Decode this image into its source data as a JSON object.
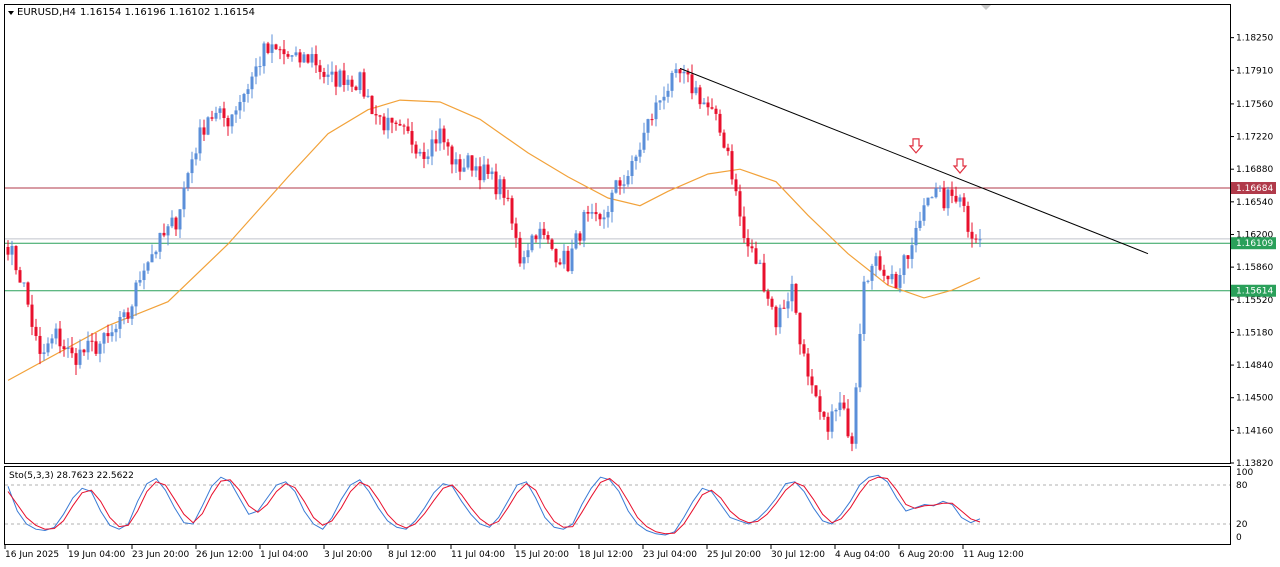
{
  "window": {
    "symbol_label": "EURUSD,H4",
    "ohlc_text": "1.16154 1.16196 1.16102 1.16154"
  },
  "colors": {
    "bull": "#5b8fd9",
    "bear": "#e8102d",
    "ma": "#f2a23a",
    "resistance": "#b03a4a",
    "support": "#2aa05a",
    "trendline": "#000000",
    "stoch_main": "#3a7bd5",
    "stoch_signal": "#e8102d",
    "arrow": "#e03040"
  },
  "chart_data": [
    {
      "type": "candlestick",
      "symbol": "EURUSD",
      "timeframe": "H4",
      "ylim": [
        1.1382,
        1.1859
      ],
      "y_ticks": [
        "1.18250",
        "1.17910",
        "1.17560",
        "1.17220",
        "1.16880",
        "1.16540",
        "1.16200",
        "1.15860",
        "1.15520",
        "1.15180",
        "1.14840",
        "1.14500",
        "1.14160",
        "1.13820"
      ],
      "x_ticks": [
        "16 Jun 2025",
        "19 Jun 04:00",
        "23 Jun 20:00",
        "26 Jun 12:00",
        "1 Jul 04:00",
        "3 Jul 20:00",
        "8 Jul 12:00",
        "11 Jul 04:00",
        "15 Jul 20:00",
        "18 Jul 12:00",
        "23 Jul 04:00",
        "25 Jul 20:00",
        "30 Jul 12:00",
        "4 Aug 04:00",
        "6 Aug 20:00",
        "11 Aug 12:00"
      ],
      "horizontal_levels": [
        {
          "value": 1.16684,
          "label": "1.16684",
          "role": "resistance"
        },
        {
          "value": 1.16109,
          "label": "1.16109",
          "role": "support"
        },
        {
          "value": 1.15614,
          "label": "1.15614",
          "role": "support"
        }
      ],
      "current_price": 1.16154,
      "trendline": {
        "from": {
          "bar": 168,
          "price": 1.1793
        },
        "to": {
          "bar": 285,
          "price": 1.16
        }
      },
      "arrows": [
        {
          "bar": 227,
          "price": 1.1705
        },
        {
          "bar": 238,
          "price": 1.1684
        }
      ],
      "anchor_closes": [
        [
          0,
          1.161
        ],
        [
          4,
          1.1565
        ],
        [
          8,
          1.149
        ],
        [
          12,
          1.1515
        ],
        [
          16,
          1.1492
        ],
        [
          20,
          1.15
        ],
        [
          25,
          1.151
        ],
        [
          30,
          1.1535
        ],
        [
          34,
          1.159
        ],
        [
          38,
          1.1612
        ],
        [
          42,
          1.1635
        ],
        [
          46,
          1.17
        ],
        [
          50,
          1.1745
        ],
        [
          55,
          1.174
        ],
        [
          60,
          1.1775
        ],
        [
          64,
          1.181
        ],
        [
          68,
          1.181
        ],
        [
          72,
          1.18
        ],
        [
          76,
          1.1806
        ],
        [
          80,
          1.178
        ],
        [
          84,
          1.1785
        ],
        [
          88,
          1.1778
        ],
        [
          92,
          1.1745
        ],
        [
          96,
          1.1728
        ],
        [
          100,
          1.1722
        ],
        [
          104,
          1.1708
        ],
        [
          108,
          1.1725
        ],
        [
          112,
          1.169
        ],
        [
          116,
          1.1695
        ],
        [
          120,
          1.168
        ],
        [
          124,
          1.1665
        ],
        [
          128,
          1.1595
        ],
        [
          132,
          1.1625
        ],
        [
          136,
          1.1605
        ],
        [
          140,
          1.159
        ],
        [
          144,
          1.1635
        ],
        [
          148,
          1.163
        ],
        [
          152,
          1.1668
        ],
        [
          156,
          1.1688
        ],
        [
          160,
          1.1735
        ],
        [
          164,
          1.177
        ],
        [
          168,
          1.1785
        ],
        [
          172,
          1.177
        ],
        [
          176,
          1.1745
        ],
        [
          180,
          1.1708
        ],
        [
          184,
          1.1615
        ],
        [
          188,
          1.1585
        ],
        [
          192,
          1.153
        ],
        [
          196,
          1.1565
        ],
        [
          200,
          1.1465
        ],
        [
          204,
          1.142
        ],
        [
          208,
          1.144
        ],
        [
          211,
          1.141
        ],
        [
          212,
          1.147
        ],
        [
          214,
          1.158
        ],
        [
          218,
          1.159
        ],
        [
          222,
          1.157
        ],
        [
          226,
          1.1605
        ],
        [
          230,
          1.1668
        ],
        [
          234,
          1.1655
        ],
        [
          238,
          1.1665
        ],
        [
          240,
          1.163
        ],
        [
          243,
          1.1615
        ]
      ],
      "ma_path": [
        [
          0,
          1.1468
        ],
        [
          25,
          1.1525
        ],
        [
          40,
          1.155
        ],
        [
          55,
          1.161
        ],
        [
          70,
          1.168
        ],
        [
          80,
          1.1725
        ],
        [
          90,
          1.175
        ],
        [
          98,
          1.176
        ],
        [
          108,
          1.1758
        ],
        [
          118,
          1.174
        ],
        [
          130,
          1.1705
        ],
        [
          140,
          1.168
        ],
        [
          150,
          1.1658
        ],
        [
          158,
          1.165
        ],
        [
          165,
          1.1665
        ],
        [
          175,
          1.1683
        ],
        [
          183,
          1.1688
        ],
        [
          192,
          1.1675
        ],
        [
          200,
          1.164
        ],
        [
          210,
          1.16
        ],
        [
          220,
          1.1567
        ],
        [
          229,
          1.1554
        ],
        [
          236,
          1.1562
        ],
        [
          243,
          1.1575
        ]
      ]
    },
    {
      "type": "line",
      "indicator": "Stochastic",
      "label": "Sto(5,3,3) 28.7623 22.5622",
      "ylim": [
        0,
        100
      ],
      "y_ticks": [
        "100",
        "80",
        "20",
        "0"
      ],
      "levels": [
        80,
        20
      ],
      "series": [
        {
          "role": "main",
          "values": [
            78,
            40,
            20,
            12,
            10,
            15,
            35,
            60,
            75,
            70,
            40,
            18,
            12,
            20,
            55,
            82,
            90,
            72,
            45,
            22,
            20,
            48,
            78,
            92,
            85,
            60,
            35,
            40,
            60,
            80,
            85,
            70,
            40,
            20,
            12,
            30,
            58,
            80,
            88,
            70,
            45,
            25,
            15,
            12,
            25,
            45,
            68,
            82,
            78,
            55,
            35,
            20,
            15,
            30,
            55,
            80,
            85,
            60,
            30,
            15,
            12,
            20,
            50,
            75,
            92,
            88,
            70,
            40,
            20,
            10,
            5,
            3,
            8,
            30,
            55,
            75,
            70,
            50,
            30,
            25,
            20,
            28,
            42,
            60,
            82,
            85,
            70,
            45,
            25,
            20,
            35,
            55,
            80,
            92,
            95,
            85,
            60,
            40,
            45,
            50,
            48,
            55,
            50,
            30,
            22,
            28
          ]
        },
        {
          "role": "signal",
          "values": [
            70,
            50,
            30,
            18,
            12,
            13,
            25,
            48,
            68,
            72,
            55,
            30,
            16,
            18,
            40,
            70,
            85,
            80,
            58,
            35,
            22,
            36,
            65,
            86,
            88,
            72,
            48,
            38,
            50,
            70,
            82,
            76,
            55,
            30,
            18,
            25,
            45,
            70,
            84,
            78,
            58,
            35,
            20,
            14,
            20,
            36,
            56,
            75,
            80,
            65,
            45,
            28,
            18,
            24,
            45,
            68,
            82,
            72,
            45,
            24,
            15,
            16,
            38,
            62,
            84,
            90,
            78,
            55,
            30,
            16,
            8,
            5,
            6,
            20,
            42,
            65,
            72,
            60,
            40,
            28,
            22,
            24,
            35,
            52,
            72,
            84,
            78,
            58,
            35,
            22,
            28,
            45,
            68,
            86,
            92,
            90,
            72,
            50,
            44,
            48,
            49,
            52,
            52,
            40,
            28,
            23
          ]
        }
      ]
    }
  ]
}
